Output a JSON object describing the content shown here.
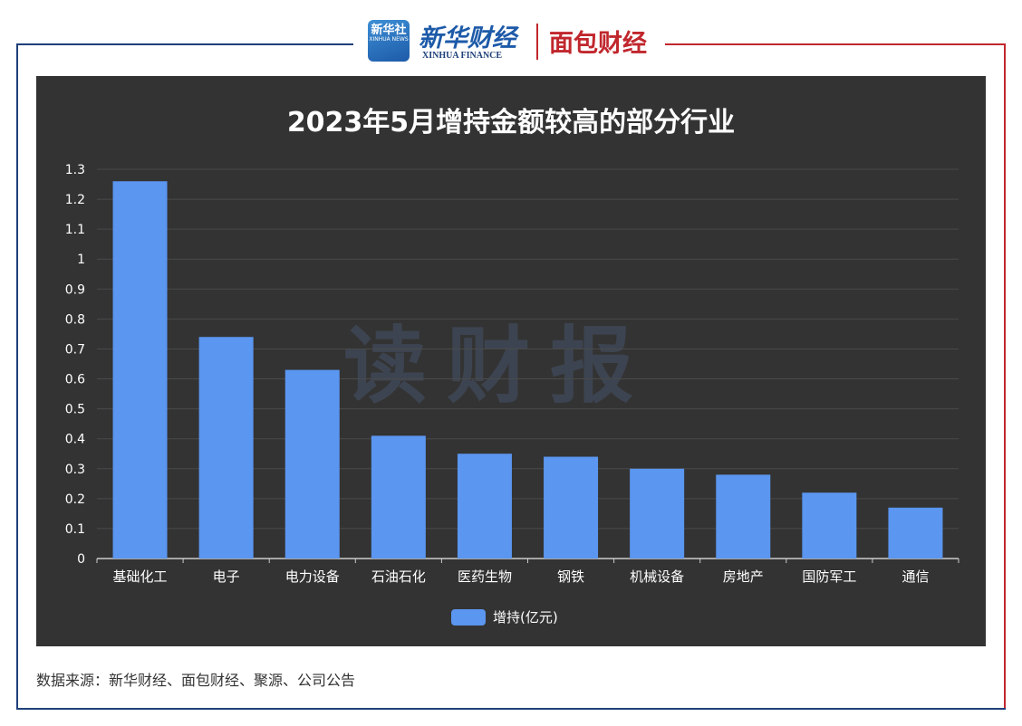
{
  "header": {
    "xinhua_badge": "新华社",
    "xinhua_badge_en": "XINHUA NEWS",
    "xinhua_finance_cn": "新华财经",
    "xinhua_finance_en": "XINHUA FINANCE",
    "mianbao_logo": "面包财经"
  },
  "watermark": "读财报",
  "source_note": "数据来源：新华财经、面包财经、聚源、公司公告",
  "colors": {
    "bar": "#5b96f0",
    "panel": "#333333",
    "frame_left": "#1f3f7a",
    "frame_right": "#c0272d"
  },
  "chart_data": {
    "type": "bar",
    "title": "2023年5月增持金额较高的部分行业",
    "categories": [
      "基础化工",
      "电子",
      "电力设备",
      "石油石化",
      "医药生物",
      "钢铁",
      "机械设备",
      "房地产",
      "国防军工",
      "通信"
    ],
    "series": [
      {
        "name": "增持(亿元)",
        "values": [
          1.26,
          0.74,
          0.63,
          0.41,
          0.35,
          0.34,
          0.3,
          0.28,
          0.22,
          0.17
        ]
      }
    ],
    "yticks": [
      "0",
      "0.1",
      "0.2",
      "0.3",
      "0.4",
      "0.5",
      "0.6",
      "0.7",
      "0.8",
      "0.9",
      "1",
      "1.1",
      "1.2",
      "1.3"
    ],
    "ylim": [
      0,
      1.3
    ],
    "grid": true,
    "legend_position": "bottom"
  }
}
